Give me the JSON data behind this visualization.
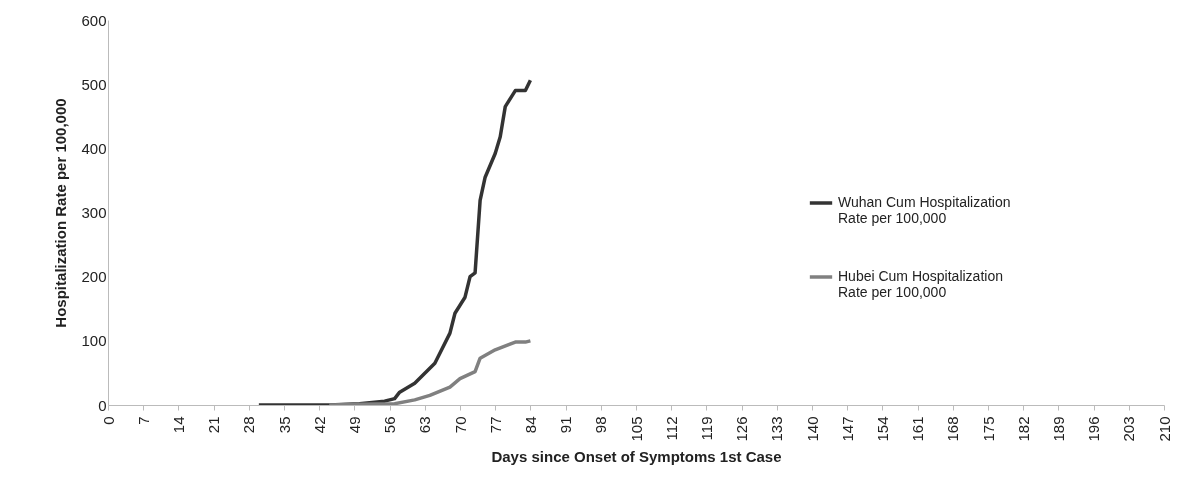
{
  "chart_data": {
    "type": "line",
    "xlabel": "Days since Onset of Symptoms 1st Case",
    "ylabel": "Hospitalization  Rate per 100,000",
    "xlim": [
      0,
      210
    ],
    "xticks": [
      0,
      7,
      14,
      21,
      28,
      35,
      42,
      49,
      56,
      63,
      70,
      77,
      84,
      91,
      98,
      105,
      112,
      119,
      126,
      133,
      140,
      147,
      154,
      161,
      168,
      175,
      182,
      189,
      196,
      203,
      210
    ],
    "ylim": [
      0,
      600
    ],
    "yticks": [
      0,
      100,
      200,
      300,
      400,
      500,
      600
    ],
    "legend": "right",
    "series": [
      {
        "name": "Wuhan Cum Hospitalization Rate per 100,000",
        "color": "#333333",
        "x": [
          30,
          44,
          50,
          55,
          57,
          58,
          61,
          65,
          68,
          69,
          71,
          72,
          73,
          74,
          75,
          77,
          78,
          79,
          81,
          83,
          84
        ],
        "values": [
          0,
          0,
          2,
          6,
          10,
          20,
          34,
          65,
          112,
          143,
          168,
          200,
          206,
          319,
          355,
          392,
          418,
          465,
          490,
          490,
          506
        ]
      },
      {
        "name": "Hubei Cum Hospitalization Rate per 100,000",
        "color": "#808080",
        "x": [
          44,
          50,
          57,
          61,
          64,
          68,
          70,
          73,
          74,
          77,
          81,
          83,
          84
        ],
        "values": [
          0,
          1,
          2,
          8,
          15,
          28,
          41,
          52,
          73,
          86,
          98,
          98,
          100
        ]
      }
    ]
  }
}
